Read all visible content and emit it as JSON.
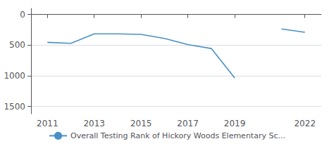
{
  "chart_data": {
    "type": "line",
    "x": [
      2011,
      2012,
      2013,
      2014,
      2015,
      2016,
      2017,
      2018,
      2019,
      2020,
      2021,
      2022
    ],
    "series": [
      {
        "name": "Overall Testing Rank of Hickory Woods Elementary Sc...",
        "color": "#4a90c4",
        "values": [
          455,
          470,
          315,
          315,
          325,
          390,
          490,
          555,
          1035,
          null,
          235,
          290
        ]
      }
    ],
    "xlim": [
      2010.3,
      2022.7
    ],
    "xticks": [
      2011,
      2013,
      2015,
      2017,
      2019,
      2022
    ],
    "ylim": [
      1620,
      -100
    ],
    "yticks": [
      0,
      500,
      1000,
      1500
    ],
    "grid": true,
    "legend": "bottom"
  }
}
